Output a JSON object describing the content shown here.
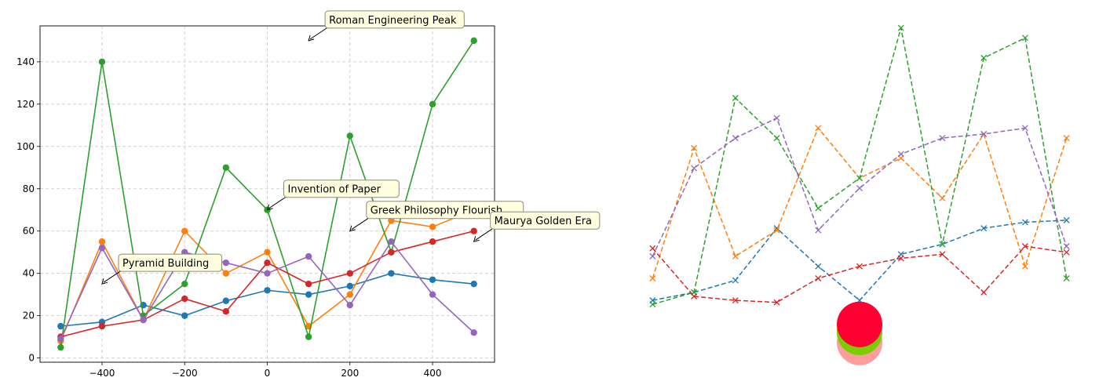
{
  "chart_data": [
    {
      "type": "line",
      "title": "",
      "xlabel": "",
      "ylabel": "",
      "xlim": [
        -550,
        550
      ],
      "ylim": [
        -2,
        157
      ],
      "grid": true,
      "marker": "circle",
      "x": [
        -500,
        -400,
        -300,
        -200,
        -100,
        0,
        100,
        200,
        300,
        400,
        500
      ],
      "xticks": [
        -400,
        -200,
        0,
        200,
        400
      ],
      "yticks": [
        0,
        20,
        40,
        60,
        80,
        100,
        120,
        140
      ],
      "series": [
        {
          "color": "#1f77b4",
          "values": [
            15,
            17,
            25,
            20,
            27,
            32,
            30,
            34,
            40,
            37,
            35
          ]
        },
        {
          "color": "#ff7f0e",
          "values": [
            8,
            55,
            18,
            60,
            40,
            50,
            15,
            30,
            65,
            62,
            70
          ]
        },
        {
          "color": "#2ca02c",
          "values": [
            5,
            140,
            20,
            35,
            90,
            70,
            10,
            105,
            50,
            120,
            150
          ]
        },
        {
          "color": "#d62728",
          "values": [
            10,
            15,
            18,
            28,
            22,
            45,
            35,
            40,
            50,
            55,
            60
          ]
        },
        {
          "color": "#9467bd",
          "values": [
            9,
            52,
            18,
            50,
            45,
            40,
            48,
            25,
            55,
            30,
            12
          ]
        }
      ],
      "annotations": [
        {
          "text": "Pyramid Building",
          "x": -400,
          "y": 35
        },
        {
          "text": "Roman Engineering Peak",
          "x": 100,
          "y": 150
        },
        {
          "text": "Invention of Paper",
          "x": 0,
          "y": 70
        },
        {
          "text": "Greek Philosophy Flourish",
          "x": 200,
          "y": 60
        },
        {
          "text": "Maurya Golden Era",
          "x": 500,
          "y": 55
        }
      ]
    },
    {
      "type": "line",
      "title": "",
      "xlabel": "",
      "ylabel": "",
      "axes": "off",
      "marker": "x",
      "linestyle": "dashed",
      "xlim": [
        -0.5,
        10.5
      ],
      "ylim": [
        -20,
        160
      ],
      "x": [
        0,
        1,
        2,
        3,
        4,
        5,
        6,
        7,
        8,
        9,
        10
      ],
      "series": [
        {
          "color": "#1f77b4",
          "values": [
            14,
            18,
            24,
            50,
            31,
            14,
            37,
            42,
            50,
            53,
            54
          ]
        },
        {
          "color": "#ff7f0e",
          "values": [
            25,
            90,
            36,
            49,
            100,
            75,
            85,
            65,
            97,
            31,
            95
          ]
        },
        {
          "color": "#2ca02c",
          "values": [
            12,
            18,
            115,
            95,
            60,
            75,
            150,
            42,
            135,
            145,
            25
          ]
        },
        {
          "color": "#d62728",
          "values": [
            40,
            16,
            14,
            13,
            25,
            31,
            35,
            37,
            18,
            41,
            38
          ]
        },
        {
          "color": "#9467bd",
          "values": [
            36,
            80,
            95,
            105,
            49,
            70,
            87,
            95,
            97,
            100,
            41
          ]
        }
      ],
      "blobs": [
        {
          "color": "#ff9d9d",
          "x": 5,
          "y": -7
        },
        {
          "color": "#ff69b4",
          "x": 5,
          "y": 0
        },
        {
          "color": "#ffff00",
          "x": 5,
          "y": 1
        },
        {
          "color": "#7ccd00",
          "x": 5,
          "y": -2
        },
        {
          "color": "#ff0033",
          "x": 5,
          "y": 2
        }
      ]
    }
  ]
}
